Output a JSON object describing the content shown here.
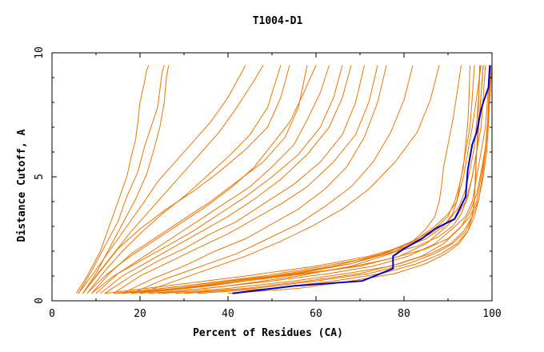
{
  "chart_data": {
    "type": "line",
    "title": "T1004-D1",
    "xlabel": "Percent of Residues (CA)",
    "ylabel": "Distance Cutoff, A",
    "xlim": [
      0,
      100
    ],
    "ylim": [
      0,
      10
    ],
    "x_ticks": [
      0,
      20,
      40,
      60,
      80,
      100
    ],
    "y_ticks": [
      0,
      5,
      10
    ],
    "grid": false,
    "legend": "none",
    "colors": {
      "background_series": "#ee7600",
      "highlight_series": "#0000cc"
    },
    "highlight_series": {
      "x": [
        41,
        55,
        70.5,
        77.5,
        77.5,
        80,
        84,
        87,
        91.5,
        94,
        94.5,
        95.5,
        96.5,
        97.5,
        98,
        99.2,
        99.5
      ],
      "y": [
        0.3,
        0.6,
        0.8,
        1.3,
        1.8,
        2.1,
        2.5,
        2.9,
        3.3,
        4.2,
        5.3,
        6.3,
        6.8,
        7.7,
        8.0,
        8.6,
        9.5
      ]
    },
    "background_series": [
      {
        "x": [
          5.5,
          8,
          11,
          13,
          15,
          17,
          18,
          19,
          19.5,
          20,
          21,
          21.5,
          22
        ],
        "y": [
          0.3,
          1,
          2,
          3,
          4,
          5,
          5.8,
          6.5,
          7.2,
          8,
          8.8,
          9.3,
          9.5
        ]
      },
      {
        "x": [
          6,
          9,
          12,
          15,
          17,
          19.5,
          21,
          22.5,
          24,
          24.5,
          25,
          25.5
        ],
        "y": [
          0.3,
          1.2,
          2.2,
          3.2,
          4.2,
          5.2,
          6.2,
          7,
          7.8,
          8.5,
          9.2,
          9.5
        ]
      },
      {
        "x": [
          7,
          10,
          13,
          16,
          19,
          21.5,
          23,
          24.5,
          25.5,
          26,
          26.5
        ],
        "y": [
          0.3,
          1.1,
          2.1,
          3.1,
          4.1,
          5.1,
          6,
          7,
          8,
          9,
          9.5
        ]
      },
      {
        "x": [
          6,
          9,
          13,
          17,
          21,
          24,
          28,
          32,
          36,
          40,
          44
        ],
        "y": [
          0.3,
          1,
          2,
          3,
          4,
          4.8,
          5.6,
          6.4,
          7.2,
          8.2,
          9.5
        ]
      },
      {
        "x": [
          7,
          10,
          14,
          18,
          22,
          26,
          30,
          34,
          38,
          42,
          46,
          48
        ],
        "y": [
          0.3,
          1,
          1.9,
          2.8,
          3.6,
          4.4,
          5.2,
          6,
          6.8,
          7.8,
          8.9,
          9.5
        ]
      },
      {
        "x": [
          8,
          12,
          16,
          20,
          25,
          30,
          35,
          40,
          45,
          49,
          52
        ],
        "y": [
          0.3,
          1.2,
          2,
          2.7,
          3.5,
          4.2,
          5,
          5.8,
          6.7,
          7.8,
          9.5
        ]
      },
      {
        "x": [
          7,
          11,
          15,
          20,
          26,
          32,
          38,
          44,
          49,
          52,
          54
        ],
        "y": [
          0.3,
          1.2,
          2.1,
          2.9,
          3.7,
          4.4,
          5.2,
          6.1,
          7,
          8.2,
          9.5
        ]
      },
      {
        "x": [
          9,
          13,
          18,
          24,
          30,
          36,
          42,
          48,
          53,
          56,
          58
        ],
        "y": [
          0.3,
          1.1,
          1.9,
          2.6,
          3.3,
          4,
          4.8,
          5.6,
          6.6,
          7.8,
          9.5
        ]
      },
      {
        "x": [
          8,
          12,
          17,
          23,
          29,
          35,
          41,
          46,
          50,
          54,
          57,
          60
        ],
        "y": [
          0.3,
          1,
          1.7,
          2.4,
          3.1,
          3.8,
          4.6,
          5.4,
          6.3,
          7.2,
          8.3,
          9.5
        ]
      },
      {
        "x": [
          10,
          15,
          21,
          27,
          33,
          39,
          45,
          50,
          55,
          58,
          61,
          63
        ],
        "y": [
          0.3,
          1.1,
          1.8,
          2.5,
          3.2,
          3.9,
          4.6,
          5.4,
          6.3,
          7.3,
          8.4,
          9.5
        ]
      },
      {
        "x": [
          9,
          14,
          20,
          26,
          32,
          38,
          44,
          50,
          56,
          61,
          64,
          66
        ],
        "y": [
          0.3,
          1,
          1.6,
          2.2,
          2.8,
          3.5,
          4.2,
          5,
          5.9,
          7,
          8.2,
          9.5
        ]
      },
      {
        "x": [
          11,
          16,
          22,
          28,
          34,
          40,
          46,
          52,
          58,
          63,
          66,
          68
        ],
        "y": [
          0.3,
          1,
          1.6,
          2.2,
          2.8,
          3.4,
          4.1,
          4.9,
          5.9,
          7,
          8.2,
          9.5
        ]
      },
      {
        "x": [
          12,
          18,
          24,
          30,
          36,
          42,
          48,
          55,
          61,
          66,
          69,
          71
        ],
        "y": [
          0.3,
          1,
          1.6,
          2.1,
          2.7,
          3.2,
          3.9,
          4.7,
          5.6,
          6.7,
          8,
          9.5
        ]
      },
      {
        "x": [
          14,
          20,
          27,
          34,
          40,
          46,
          52,
          58,
          64,
          69,
          72,
          74
        ],
        "y": [
          0.3,
          1,
          1.6,
          2.2,
          2.7,
          3.3,
          3.9,
          4.6,
          5.6,
          6.7,
          8,
          9.5
        ]
      },
      {
        "x": [
          16,
          23,
          30,
          37,
          44,
          50,
          56,
          62,
          67,
          71,
          74,
          76
        ],
        "y": [
          0.3,
          0.9,
          1.4,
          2,
          2.5,
          3.1,
          3.7,
          4.5,
          5.4,
          6.6,
          8,
          9.5
        ]
      },
      {
        "x": [
          18,
          26,
          34,
          42,
          49,
          56,
          62,
          68,
          73,
          77,
          80,
          82
        ],
        "y": [
          0.3,
          0.9,
          1.4,
          1.9,
          2.5,
          3.1,
          3.8,
          4.6,
          5.6,
          6.8,
          8.1,
          9.5
        ]
      },
      {
        "x": [
          20,
          28,
          36,
          44,
          52,
          59,
          66,
          72,
          78,
          83,
          86,
          88
        ],
        "y": [
          0.3,
          0.8,
          1.3,
          1.8,
          2.4,
          3,
          3.7,
          4.5,
          5.6,
          6.8,
          8.1,
          9.5
        ]
      },
      {
        "x": [
          14,
          25,
          40,
          55,
          68,
          78,
          85,
          89,
          91,
          92,
          93,
          94,
          95,
          95.5,
          96
        ],
        "y": [
          0.3,
          0.5,
          0.8,
          1.1,
          1.5,
          2,
          2.5,
          3,
          3.5,
          4,
          5,
          6,
          7,
          8.2,
          9.5
        ]
      },
      {
        "x": [
          16,
          28,
          42,
          56,
          68,
          77,
          83,
          87,
          90,
          92,
          93.5,
          94.5,
          95.5,
          96.5,
          97.5
        ],
        "y": [
          0.3,
          0.5,
          0.8,
          1.1,
          1.5,
          2,
          2.5,
          3,
          3.5,
          4,
          5,
          6,
          7,
          8.2,
          9.5
        ]
      },
      {
        "x": [
          18,
          30,
          44,
          58,
          70,
          79,
          85,
          89,
          92,
          94,
          95.5,
          96.5,
          97.5,
          98,
          98.5
        ],
        "y": [
          0.3,
          0.5,
          0.8,
          1.1,
          1.4,
          1.8,
          2.3,
          2.9,
          3.4,
          4,
          5,
          6,
          7,
          8.2,
          9.5
        ]
      },
      {
        "x": [
          22,
          35,
          50,
          63,
          73,
          81,
          87,
          91,
          94,
          95.5,
          96.5,
          97.5,
          98.5,
          99,
          99.5
        ],
        "y": [
          0.3,
          0.5,
          0.8,
          1.1,
          1.4,
          1.8,
          2.3,
          2.9,
          3.4,
          4,
          5,
          6,
          7,
          8.2,
          9.5
        ]
      },
      {
        "x": [
          25,
          40,
          55,
          67,
          77,
          84,
          89,
          92.5,
          95,
          96.5,
          97.5,
          98.5,
          99,
          99.5,
          100
        ],
        "y": [
          0.3,
          0.5,
          0.8,
          1.1,
          1.4,
          1.8,
          2.3,
          2.9,
          3.4,
          4,
          5,
          6,
          7,
          8.2,
          9.5
        ]
      },
      {
        "x": [
          15,
          30,
          48,
          62,
          74,
          83,
          88,
          91,
          93,
          94.5,
          95.5,
          96.5,
          97,
          97.5,
          98
        ],
        "y": [
          0.3,
          0.6,
          1,
          1.4,
          1.8,
          2.2,
          2.6,
          3,
          3.5,
          4.2,
          5,
          6,
          7,
          8.3,
          9.5
        ]
      },
      {
        "x": [
          20,
          36,
          52,
          66,
          77,
          85,
          90,
          93,
          95,
          96.5,
          97.5,
          98.5,
          99,
          99.3,
          99.6
        ],
        "y": [
          0.3,
          0.6,
          1,
          1.3,
          1.7,
          2.1,
          2.5,
          3,
          3.6,
          4.3,
          5.2,
          6.2,
          7.2,
          8.4,
          9.5
        ]
      },
      {
        "x": [
          28,
          44,
          58,
          70,
          79,
          86,
          90.5,
          93.5,
          95.5,
          97,
          98,
          98.8,
          99.2,
          99.5,
          99.8
        ],
        "y": [
          0.3,
          0.5,
          0.8,
          1.1,
          1.5,
          1.9,
          2.3,
          2.8,
          3.4,
          4.1,
          5,
          6,
          7.1,
          8.3,
          9.5
        ]
      },
      {
        "x": [
          30,
          46,
          60,
          72,
          81,
          87,
          91,
          94,
          95.5,
          96,
          96.2,
          96.5,
          97,
          97.5,
          98
        ],
        "y": [
          0.3,
          0.5,
          0.8,
          1.1,
          1.5,
          1.9,
          2.3,
          2.8,
          3.4,
          4.1,
          5,
          6,
          7.1,
          8.3,
          9.5
        ]
      },
      {
        "x": [
          33,
          50,
          64,
          75,
          83,
          88.5,
          92,
          94.5,
          96,
          97,
          97.8,
          98.5,
          99,
          99.4,
          99.8
        ],
        "y": [
          0.3,
          0.5,
          0.8,
          1.1,
          1.5,
          1.9,
          2.3,
          2.8,
          3.4,
          4.1,
          5,
          6,
          7.1,
          8.3,
          9.5
        ]
      },
      {
        "x": [
          12,
          26,
          44,
          60,
          72,
          80,
          86,
          90,
          92.5,
          94,
          95,
          96,
          96.5,
          97,
          97.2
        ],
        "y": [
          0.3,
          0.6,
          1,
          1.4,
          1.8,
          2.2,
          2.7,
          3.2,
          3.8,
          4.5,
          5.3,
          6.2,
          7.2,
          8.3,
          9.5
        ]
      },
      {
        "x": [
          40,
          56,
          68,
          78,
          85,
          89.5,
          92.5,
          94.5,
          95.5,
          96,
          96.3,
          96.5,
          96.8,
          97,
          97.3
        ],
        "y": [
          0.3,
          0.5,
          0.8,
          1.1,
          1.5,
          1.9,
          2.3,
          2.8,
          3.4,
          4.1,
          5,
          6,
          7.1,
          8.3,
          9.5
        ]
      },
      {
        "x": [
          24,
          40,
          56,
          68,
          77,
          82,
          85,
          87,
          88,
          88.5,
          89,
          90,
          91,
          92,
          93
        ],
        "y": [
          0.3,
          0.6,
          1,
          1.4,
          1.9,
          2.4,
          2.9,
          3.4,
          4,
          4.6,
          5.4,
          6.3,
          7.2,
          8.3,
          9.5
        ]
      },
      {
        "x": [
          18,
          34,
          50,
          64,
          75,
          82,
          87,
          90,
          91.5,
          92.5,
          93.5,
          94,
          94.5,
          94.8,
          95
        ],
        "y": [
          0.3,
          0.6,
          1,
          1.4,
          1.9,
          2.4,
          2.9,
          3.4,
          4,
          4.6,
          5.4,
          6.3,
          7.2,
          8.3,
          9.5
        ]
      }
    ]
  }
}
